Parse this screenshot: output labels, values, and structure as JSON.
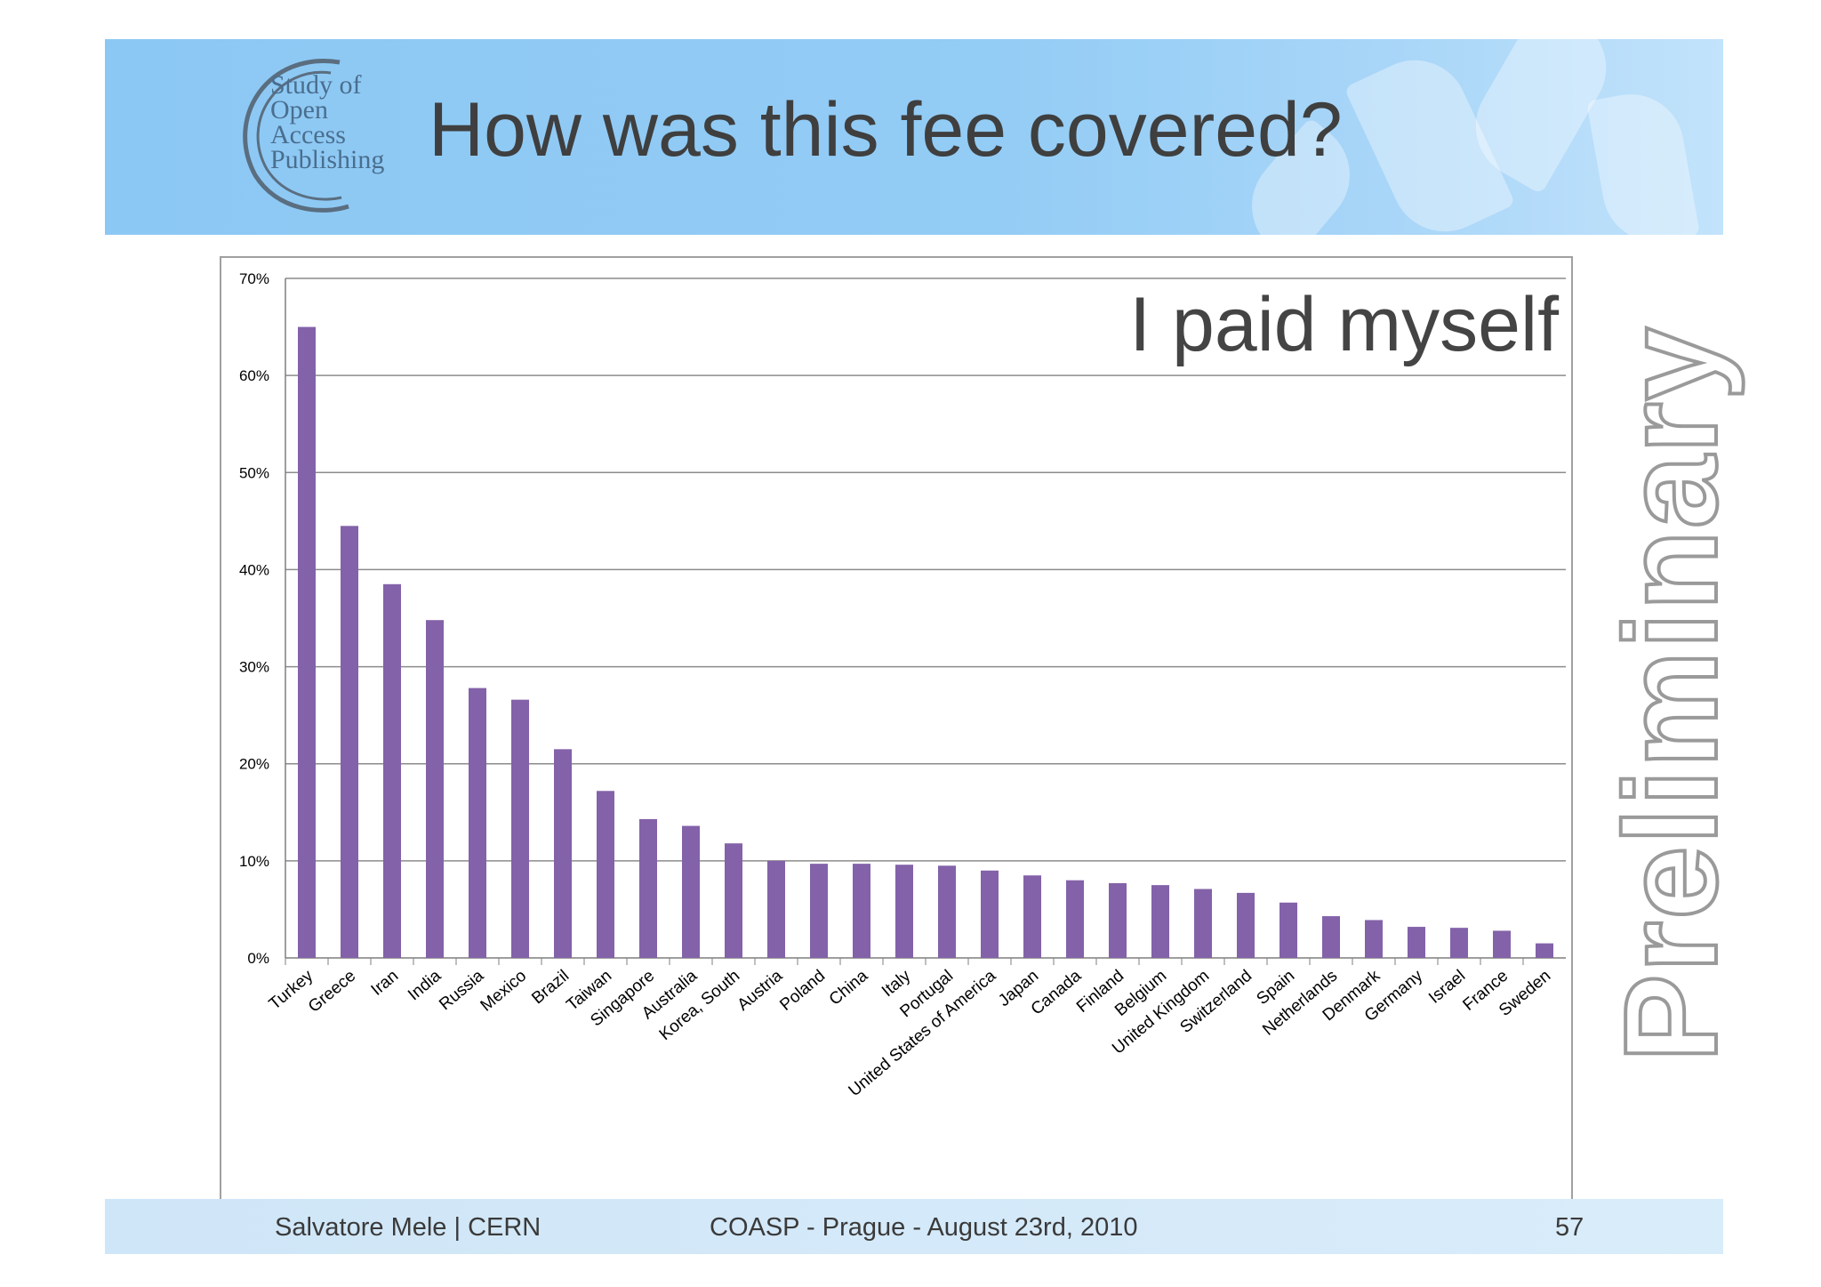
{
  "slide": {
    "title": "How was this fee covered?",
    "logo_lines": [
      "Study of",
      "Open",
      "Access",
      "Publishing"
    ],
    "watermark": "Preliminary",
    "header_color": "#8cc8f4"
  },
  "footer": {
    "author": "Salvatore Mele | CERN",
    "event": "COASP - Prague - August 23rd, 2010",
    "page_number": "57"
  },
  "chart_data": {
    "type": "bar",
    "title": "I paid myself",
    "xlabel": "",
    "ylabel": "",
    "ylim": [
      0,
      70
    ],
    "yticks": [
      "0%",
      "10%",
      "20%",
      "30%",
      "40%",
      "50%",
      "60%",
      "70%"
    ],
    "grid": true,
    "bar_color": "#8362a9",
    "categories": [
      "Turkey",
      "Greece",
      "Iran",
      "India",
      "Russia",
      "Mexico",
      "Brazil",
      "Taiwan",
      "Singapore",
      "Australia",
      "Korea, South",
      "Austria",
      "Poland",
      "China",
      "Italy",
      "Portugal",
      "United States of America",
      "Japan",
      "Canada",
      "Finland",
      "Belgium",
      "United Kingdom",
      "Switzerland",
      "Spain",
      "Netherlands",
      "Denmark",
      "Germany",
      "Israel",
      "France",
      "Sweden"
    ],
    "values": [
      65.0,
      44.5,
      38.5,
      34.8,
      27.8,
      26.6,
      21.5,
      17.2,
      14.3,
      13.6,
      11.8,
      10.0,
      9.7,
      9.7,
      9.6,
      9.5,
      9.0,
      8.5,
      8.0,
      7.7,
      7.5,
      7.1,
      6.7,
      5.7,
      4.3,
      3.9,
      3.2,
      3.1,
      2.8,
      1.5
    ]
  }
}
